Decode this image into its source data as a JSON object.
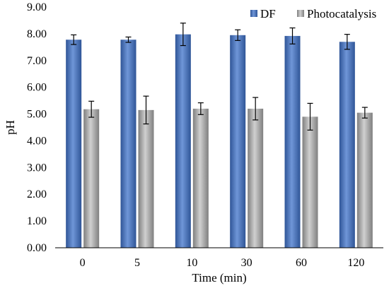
{
  "chart_data": {
    "type": "bar",
    "title": "",
    "xlabel": "Time (min)",
    "ylabel": "pH",
    "categories": [
      "0",
      "5",
      "10",
      "30",
      "60",
      "120"
    ],
    "ylim": [
      0,
      9
    ],
    "ytick_labels": [
      "0.00",
      "1.00",
      "2.00",
      "3.00",
      "4.00",
      "5.00",
      "6.00",
      "7.00",
      "8.00",
      "9.00"
    ],
    "grid": false,
    "legend_position": "top-right",
    "series": [
      {
        "name": "DF",
        "color": "#4472C4",
        "values": [
          7.78,
          7.78,
          7.98,
          7.95,
          7.92,
          7.7
        ],
        "errors": [
          0.18,
          0.1,
          0.42,
          0.2,
          0.3,
          0.28
        ]
      },
      {
        "name": "Photocatalysis",
        "color": "#A5A5A5",
        "values": [
          5.18,
          5.15,
          5.2,
          5.2,
          4.9,
          5.05
        ],
        "errors": [
          0.3,
          0.52,
          0.22,
          0.42,
          0.5,
          0.2
        ]
      }
    ]
  }
}
